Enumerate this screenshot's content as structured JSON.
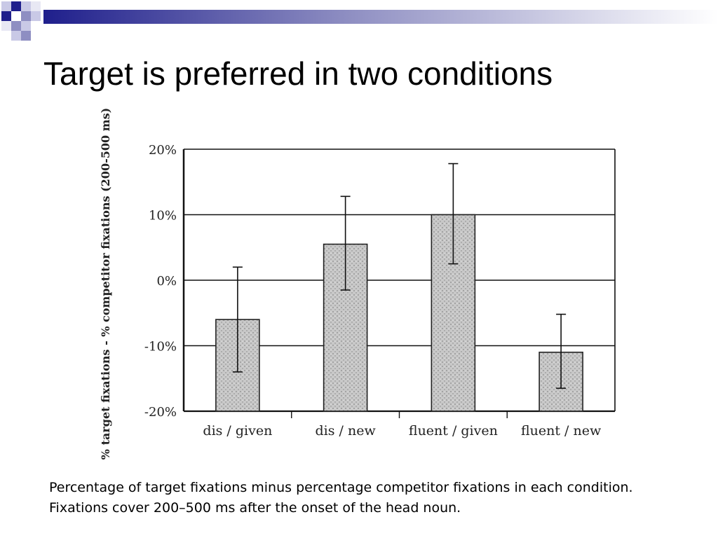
{
  "slide": {
    "title": "Target is preferred in two conditions",
    "caption": "Percentage of target fixations minus percentage competitor fixations in each condition. Fixations cover 200–500 ms after the onset of the head noun.",
    "accent_color": "#1f1f8c"
  },
  "chart_data": {
    "type": "bar",
    "title": "",
    "xlabel": "",
    "ylabel": "% target fixations - % competitor fixations (200-500 ms)",
    "categories": [
      "dis / given",
      "dis / new",
      "fluent / given",
      "fluent / new"
    ],
    "values": [
      -6,
      5.5,
      10,
      -11
    ],
    "error_low": [
      -14,
      -1.5,
      2.5,
      -16.5
    ],
    "error_high": [
      2,
      12.8,
      17.8,
      -5.2
    ],
    "yticks": [
      "20%",
      "10%",
      "0%",
      "-10%",
      "-20%"
    ],
    "ytick_values": [
      20,
      10,
      0,
      -10,
      -20
    ],
    "ylim": [
      -20,
      20
    ],
    "grid": true,
    "bar_color": "#c8c8c8"
  }
}
